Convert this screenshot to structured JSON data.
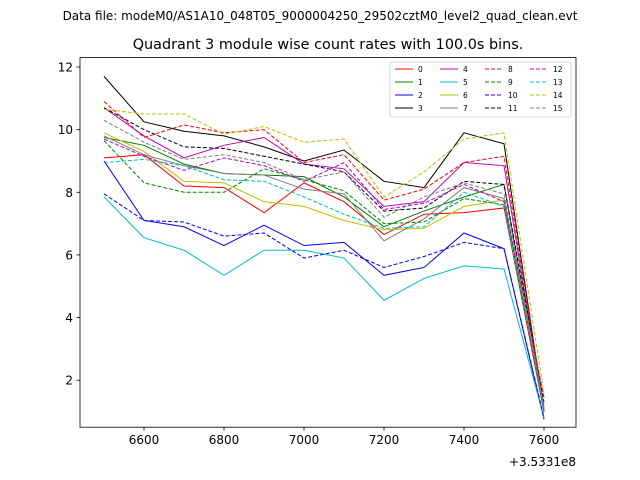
{
  "chart_data": {
    "type": "line",
    "suptitle": "Data file: modeM0/AS1A10_048T05_9000004250_29502cztM0_level2_quad_clean.evt",
    "title": "Quadrant 3 module wise count rates with 100.0s bins.",
    "xlabel": "",
    "ylabel": "",
    "x_offset_label": "+3.5331e8",
    "x": [
      6500,
      6600,
      6700,
      6800,
      6900,
      7000,
      7100,
      7200,
      7300,
      7400,
      7500,
      7600
    ],
    "xlim": [
      6440,
      7680
    ],
    "ylim": [
      0.5,
      12.3
    ],
    "x_ticks": [
      6600,
      6800,
      7000,
      7200,
      7400,
      7600
    ],
    "y_ticks": [
      2,
      4,
      6,
      8,
      10,
      12
    ],
    "grid": false,
    "legend_position": "top-right",
    "series": [
      {
        "name": "0",
        "color": "#ff0000",
        "dash": "solid",
        "values": [
          9.1,
          9.2,
          8.2,
          8.15,
          7.35,
          8.3,
          7.7,
          6.65,
          7.3,
          7.35,
          7.5,
          1.0
        ]
      },
      {
        "name": "1",
        "color": "#008000",
        "dash": "solid",
        "values": [
          9.75,
          9.5,
          8.9,
          8.6,
          8.55,
          8.5,
          7.85,
          6.9,
          7.4,
          7.85,
          8.25,
          1.0
        ]
      },
      {
        "name": "2",
        "color": "#0000ff",
        "dash": "solid",
        "values": [
          9.0,
          7.1,
          6.9,
          6.3,
          6.95,
          6.3,
          6.4,
          5.35,
          5.6,
          6.7,
          6.2,
          0.75
        ]
      },
      {
        "name": "3",
        "color": "#000000",
        "dash": "solid",
        "values": [
          11.7,
          10.25,
          9.95,
          9.8,
          9.45,
          9.0,
          9.35,
          8.35,
          8.15,
          9.9,
          9.55,
          1.0
        ]
      },
      {
        "name": "4",
        "color": "#bf00bf",
        "dash": "solid",
        "values": [
          10.7,
          9.8,
          9.1,
          9.5,
          9.75,
          8.9,
          8.75,
          7.55,
          7.7,
          8.95,
          8.85,
          1.0
        ]
      },
      {
        "name": "5",
        "color": "#00bfbf",
        "dash": "solid",
        "values": [
          7.85,
          6.55,
          6.15,
          5.35,
          6.15,
          6.15,
          5.9,
          4.55,
          5.25,
          5.65,
          5.55,
          0.8
        ]
      },
      {
        "name": "6",
        "color": "#bfbf00",
        "dash": "solid",
        "values": [
          9.9,
          9.3,
          8.35,
          8.3,
          7.7,
          7.55,
          7.1,
          6.8,
          6.85,
          7.55,
          7.75,
          1.2
        ]
      },
      {
        "name": "7",
        "color": "#808080",
        "dash": "solid",
        "values": [
          9.8,
          9.2,
          8.85,
          8.6,
          8.55,
          8.1,
          7.95,
          6.45,
          7.15,
          8.15,
          7.8,
          1.05
        ]
      },
      {
        "name": "8",
        "color": "#ff0000",
        "dash": "dashed",
        "values": [
          10.9,
          9.75,
          10.15,
          9.9,
          10.0,
          8.95,
          9.2,
          7.75,
          8.1,
          8.95,
          9.15,
          1.1
        ]
      },
      {
        "name": "9",
        "color": "#008000",
        "dash": "dashed",
        "values": [
          9.65,
          8.3,
          8.0,
          8.0,
          8.75,
          8.4,
          8.05,
          7.0,
          7.05,
          7.8,
          7.6,
          1.1
        ]
      },
      {
        "name": "10",
        "color": "#0000ff",
        "dash": "dashed",
        "values": [
          7.95,
          7.1,
          7.05,
          6.6,
          6.7,
          5.9,
          6.15,
          5.6,
          5.95,
          6.4,
          6.2,
          0.8
        ]
      },
      {
        "name": "11",
        "color": "#000000",
        "dash": "dashed",
        "values": [
          10.7,
          10.0,
          9.45,
          9.4,
          9.15,
          8.9,
          8.65,
          7.4,
          7.5,
          8.35,
          8.25,
          1.3
        ]
      },
      {
        "name": "12",
        "color": "#bf00bf",
        "dash": "dashed",
        "values": [
          9.7,
          9.15,
          8.7,
          9.1,
          8.85,
          8.35,
          8.95,
          7.45,
          7.65,
          8.25,
          7.7,
          1.45
        ]
      },
      {
        "name": "13",
        "color": "#00bfbf",
        "dash": "dashed",
        "values": [
          8.95,
          9.05,
          8.85,
          8.4,
          8.35,
          7.85,
          7.3,
          6.85,
          6.9,
          8.0,
          7.55,
          1.15
        ]
      },
      {
        "name": "14",
        "color": "#bfbf00",
        "dash": "dashed",
        "values": [
          10.65,
          10.5,
          10.5,
          9.85,
          10.1,
          9.6,
          9.7,
          7.85,
          8.65,
          9.7,
          9.9,
          1.55
        ]
      },
      {
        "name": "15",
        "color": "#808080",
        "dash": "dashed",
        "values": [
          10.3,
          9.6,
          9.05,
          9.2,
          8.95,
          8.4,
          8.65,
          7.2,
          7.85,
          8.3,
          7.95,
          1.15
        ]
      }
    ]
  }
}
